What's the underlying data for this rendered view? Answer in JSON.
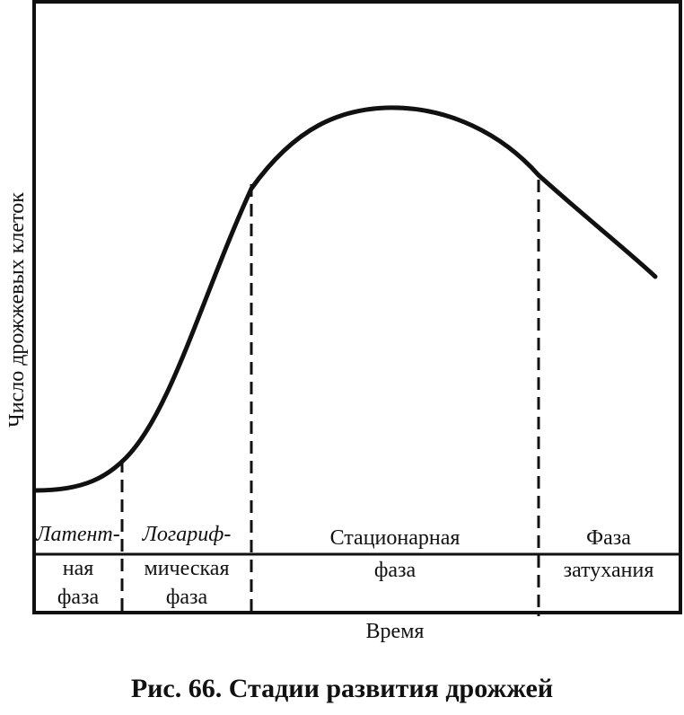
{
  "figure": {
    "caption": "Рис. 66. Стадии развития дрожжей",
    "y_axis_label": "Число дрожжевых клеток",
    "x_axis_label": "Время",
    "phases": [
      {
        "lines": [
          "Латент-",
          "ная",
          "фаза"
        ]
      },
      {
        "lines": [
          "Логариф-",
          "мическая",
          "фаза"
        ]
      },
      {
        "lines": [
          "Стационарная",
          "фаза"
        ]
      },
      {
        "lines": [
          "Фаза",
          "затухания"
        ]
      }
    ]
  },
  "colors": {
    "line": "#111111",
    "background": "#ffffff"
  }
}
